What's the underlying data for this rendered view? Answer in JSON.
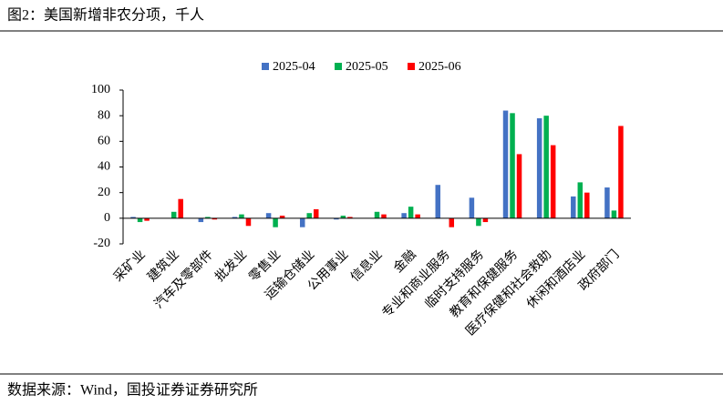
{
  "chart_data": {
    "type": "bar",
    "title": "图2：美国新增非农分项，千人",
    "source": "数据来源：Wind，国投证券证券研究所",
    "categories": [
      "采矿业",
      "建筑业",
      "汽车及零部件",
      "批发业",
      "零售业",
      "运输仓储业",
      "公用事业",
      "信息业",
      "金融",
      "专业和商业服务",
      "临时支持服务",
      "教育和保健服务",
      "医疗保健和社会救助",
      "休闲和酒店业",
      "政府部门"
    ],
    "series": [
      {
        "name": "2025-04",
        "color": "#4472c4",
        "values": [
          1,
          0,
          -3,
          1,
          4,
          -7,
          -1,
          0,
          4,
          26,
          16,
          84,
          78,
          17,
          24
        ]
      },
      {
        "name": "2025-05",
        "color": "#00b050",
        "values": [
          -3,
          5,
          1,
          3,
          -7,
          4,
          2,
          5,
          9,
          0,
          -6,
          82,
          80,
          28,
          6
        ]
      },
      {
        "name": "2025-06",
        "color": "#ff0000",
        "values": [
          -2,
          15,
          -1,
          -6,
          2,
          7,
          1,
          3,
          3,
          -7,
          -3,
          50,
          57,
          20,
          72
        ]
      }
    ],
    "ylim": [
      -20,
      100
    ],
    "yticks": [
      -20,
      0,
      20,
      40,
      60,
      80,
      100
    ],
    "legend": "top"
  }
}
